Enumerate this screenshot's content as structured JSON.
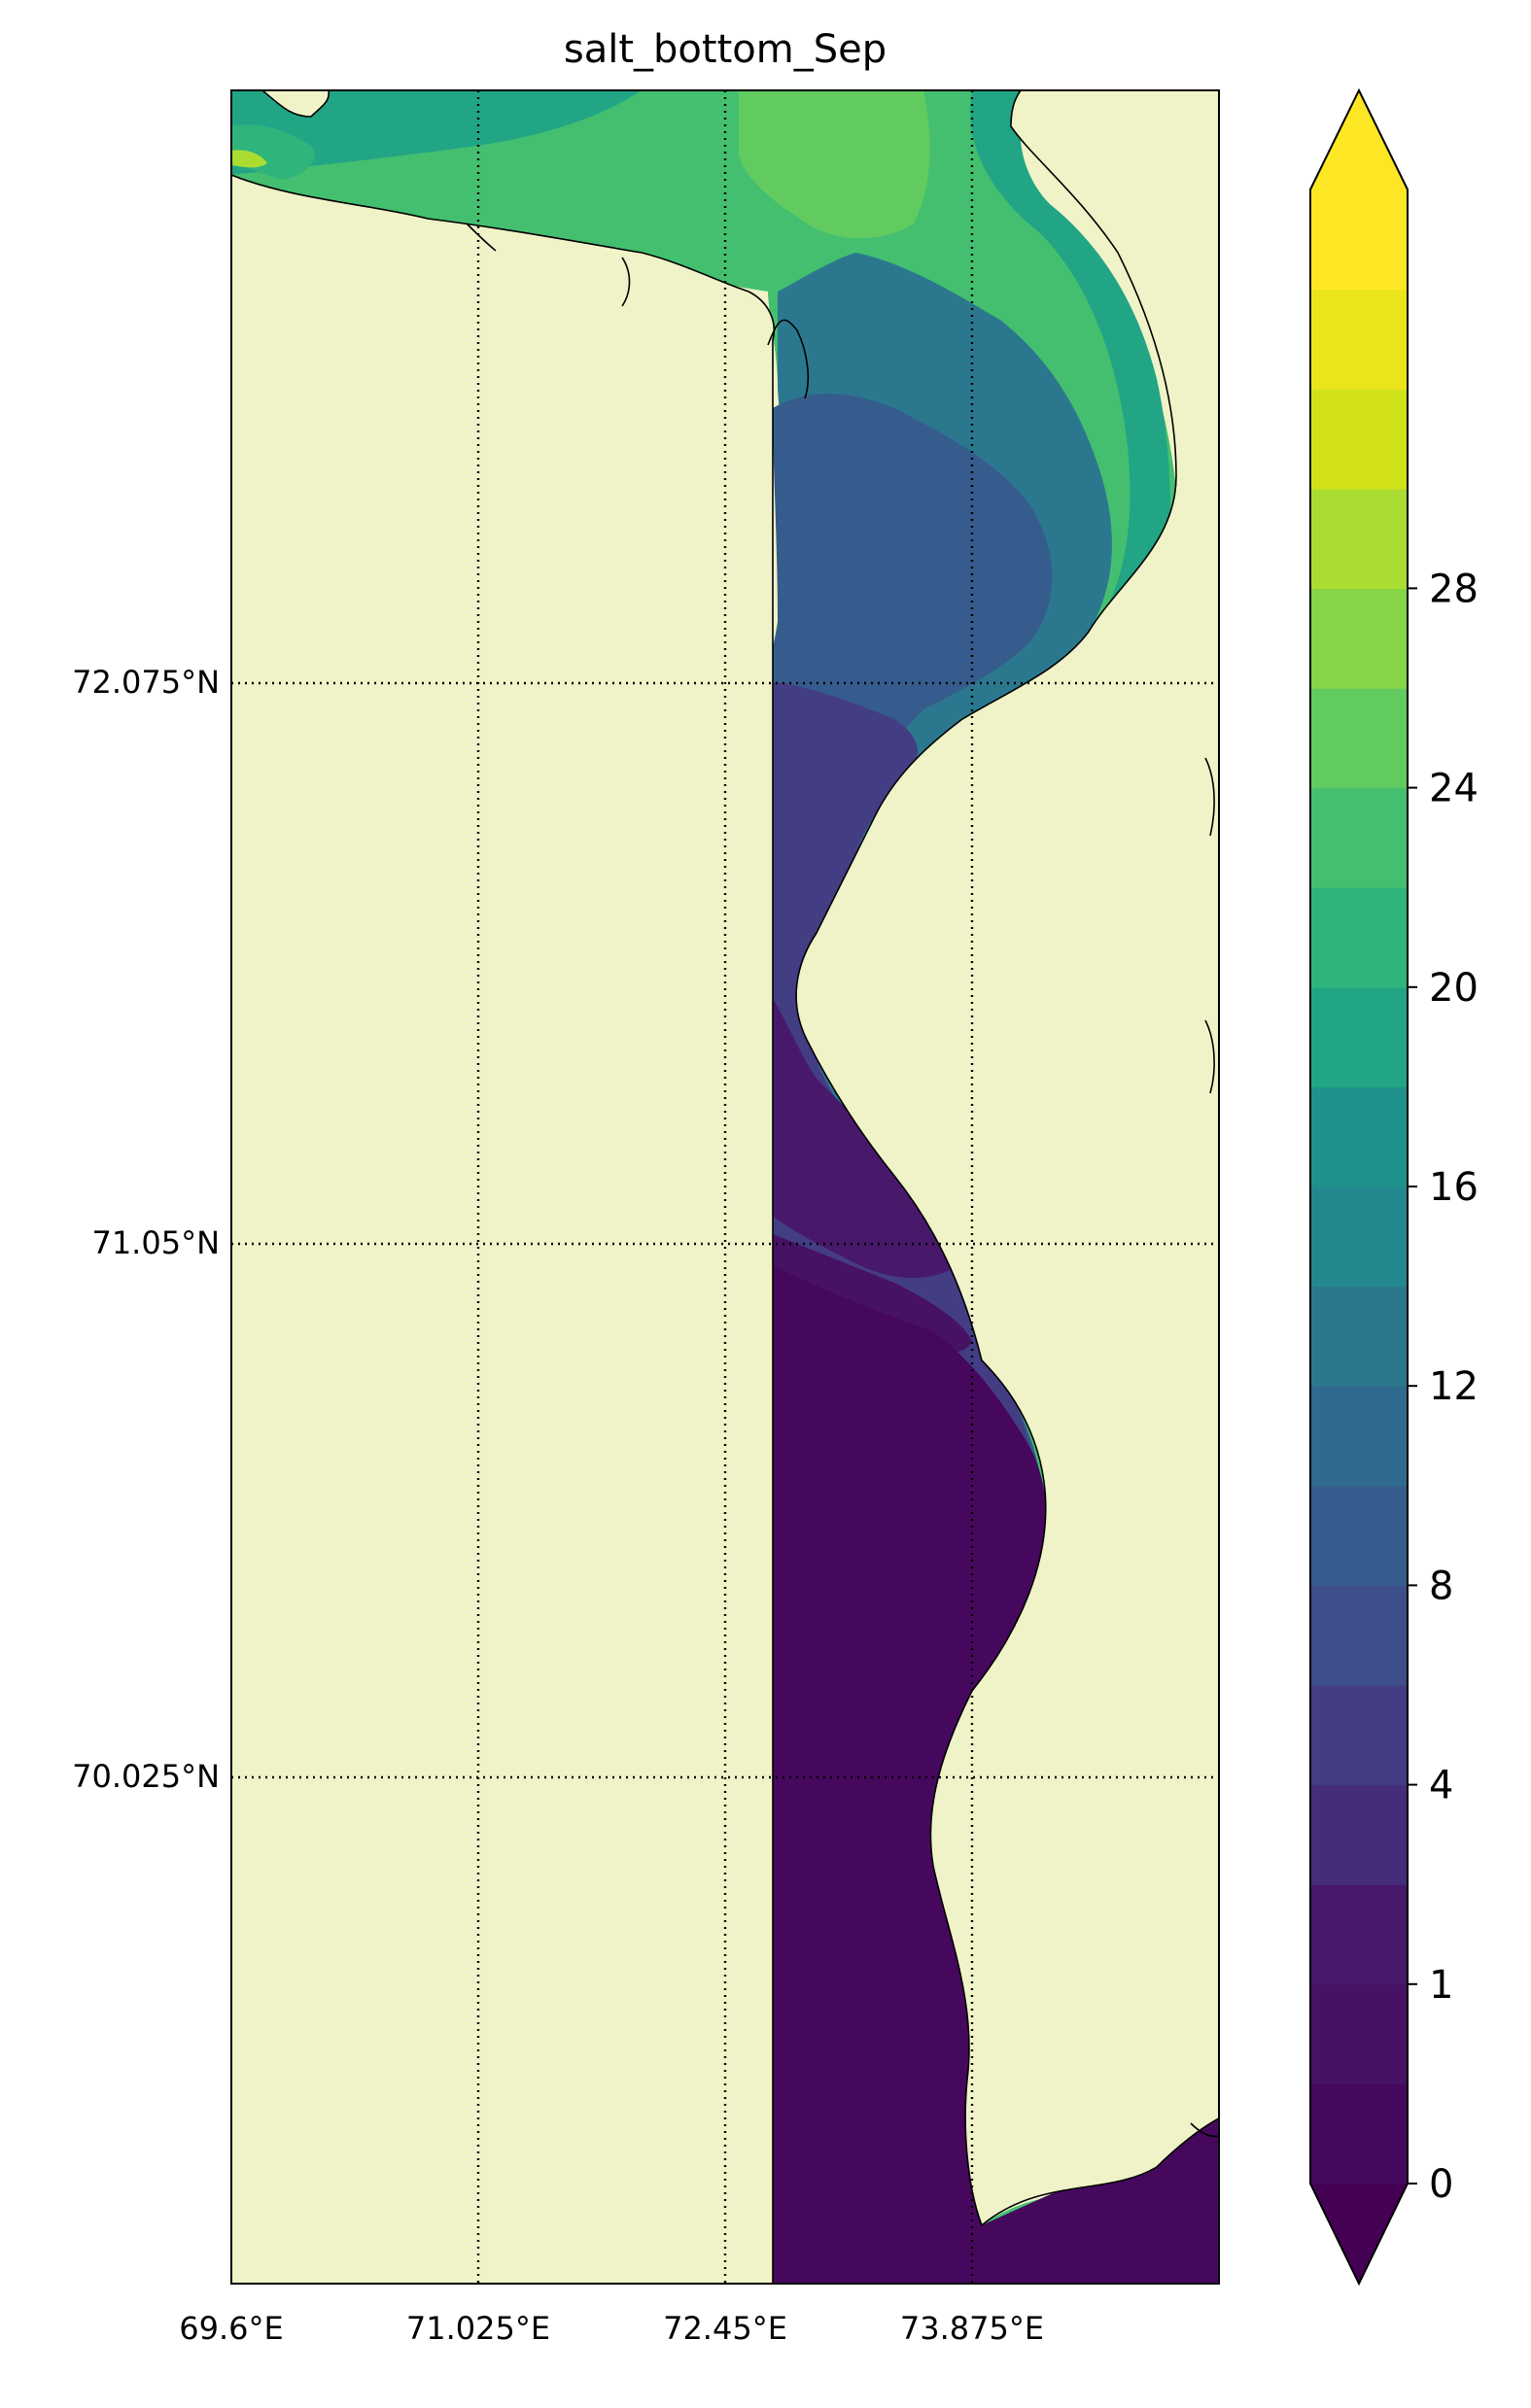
{
  "title": "salt_bottom_Sep",
  "map": {
    "lon_labels": [
      "69.6°E",
      "71.025°E",
      "72.45°E",
      "73.875°E"
    ],
    "lat_labels": [
      "72.075°N",
      "71.05°N",
      "70.025°N"
    ],
    "land_color": "#f0f3c8",
    "coastline_color": "#000000",
    "gridline_style": "dotted black"
  },
  "colorbar": {
    "tick_labels": [
      "0",
      "1",
      "4",
      "8",
      "12",
      "16",
      "20",
      "24",
      "28"
    ],
    "extend": "both",
    "colormap": "viridis",
    "band_colors": [
      "#46085c",
      "#471164",
      "#48196b",
      "#462d7b",
      "#433d84",
      "#3d4e8a",
      "#365c8d",
      "#306a8e",
      "#2b788e",
      "#24878e",
      "#20928c",
      "#21a585",
      "#2fb47c",
      "#44bf70",
      "#62cb5f",
      "#86d549",
      "#abdc32",
      "#d1e21b",
      "#eae51a",
      "#fde725"
    ],
    "under_color": "#440154",
    "over_color": "#fde725"
  }
}
